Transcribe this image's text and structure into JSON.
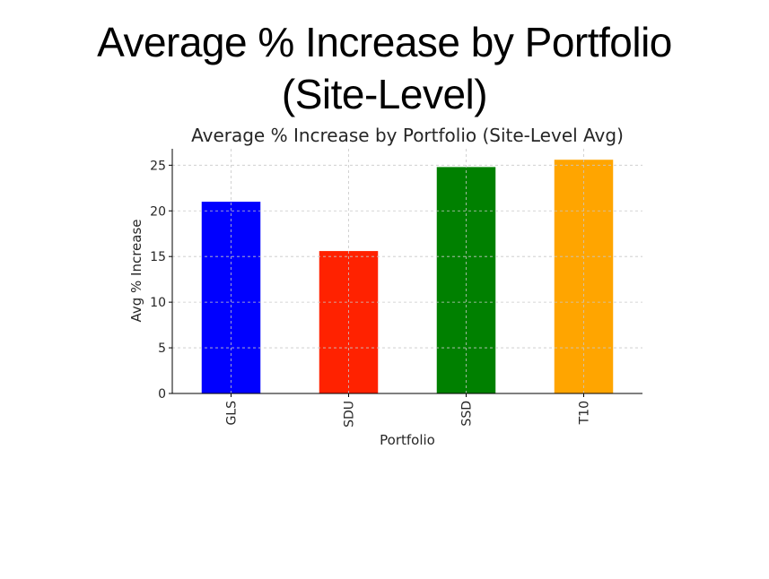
{
  "slide": {
    "title_line1": "Average % Increase by Portfolio",
    "title_line2": "(Site-Level)"
  },
  "chart_data": {
    "type": "bar",
    "title": "Average % Increase by Portfolio (Site-Level Avg)",
    "xlabel": "Portfolio",
    "ylabel": "Avg % Increase",
    "categories": [
      "GLS",
      "SDU",
      "SSD",
      "T10"
    ],
    "values": [
      21.0,
      15.6,
      24.8,
      25.6
    ],
    "colors": [
      "#0000ff",
      "#ff2200",
      "#008000",
      "#ffa500"
    ],
    "ylim": [
      0,
      26.8
    ],
    "yticks": [
      0,
      5,
      10,
      15,
      20,
      25
    ],
    "grid": true,
    "grid_style": "dashed",
    "x_tick_rotation": "vertical",
    "legend": "none"
  }
}
